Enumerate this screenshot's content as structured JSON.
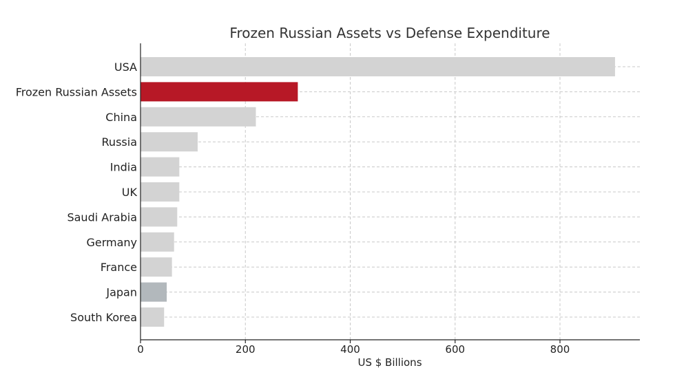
{
  "chart_data": {
    "type": "bar",
    "orientation": "horizontal",
    "title": "Frozen Russian Assets vs Defense Expenditure",
    "xlabel": "US $ Billions",
    "ylabel": "",
    "xlim": [
      0,
      950
    ],
    "xticks": [
      0,
      200,
      400,
      600,
      800
    ],
    "grid": true,
    "categories": [
      "USA",
      "Frozen Russian Assets",
      "China",
      "Russia",
      "India",
      "UK",
      "Saudi Arabia",
      "Germany",
      "France",
      "Japan",
      "South Korea"
    ],
    "values": [
      905,
      300,
      220,
      109,
      74,
      74,
      70,
      64,
      60,
      50,
      45
    ],
    "colors": [
      "#d3d3d3",
      "#b71826",
      "#d3d3d3",
      "#d3d3d3",
      "#d3d3d3",
      "#d3d3d3",
      "#d3d3d3",
      "#d3d3d3",
      "#d3d3d3",
      "#b2b8bc",
      "#d3d3d3"
    ]
  }
}
